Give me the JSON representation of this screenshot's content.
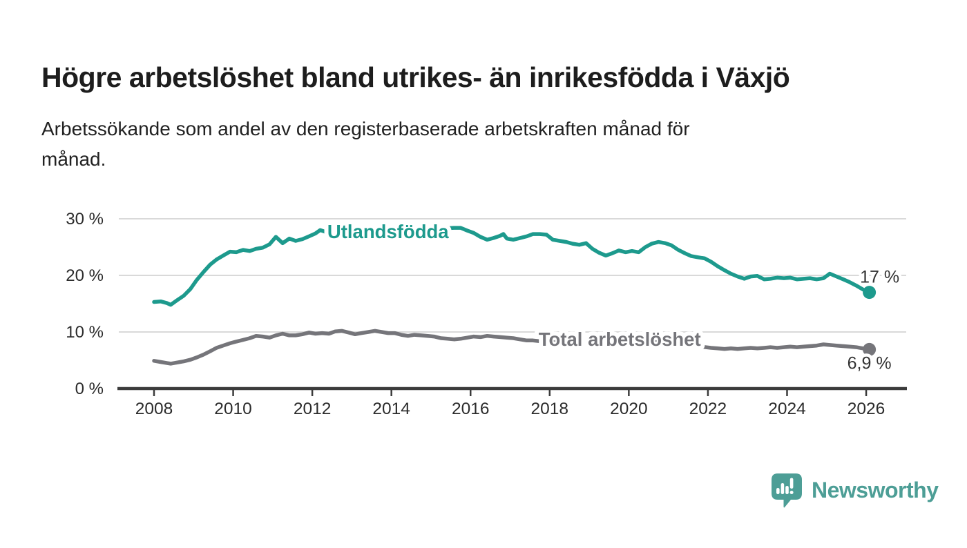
{
  "header": {
    "title": "Högre arbetslöshet bland utrikes- än inrikesfödda i Växjö",
    "subtitle_lines": [
      "Arbetssökande som andel av den registerbaserade arbetskraften månad för",
      "månad."
    ]
  },
  "chart_data": {
    "type": "line",
    "title": "Högre arbetslöshet bland utrikes- än inrikesfödda i Växjö",
    "subtitle": "Arbetssökande som andel av den registerbaserade arbetskraften månad för månad.",
    "xlabel": "",
    "ylabel": "",
    "x_range": [
      2007.1,
      2027.0
    ],
    "ylim": [
      0,
      30
    ],
    "grid": "horizontal",
    "legend_position": "inline",
    "grid_color": "#d9d9d9",
    "axis_color": "#3b3b3b",
    "tick_label_color": "#2b2b2b",
    "x_ticks": [
      2008,
      2010,
      2012,
      2014,
      2016,
      2018,
      2020,
      2022,
      2024,
      2026
    ],
    "y_ticks": [
      {
        "value": 0,
        "label": "0 %"
      },
      {
        "value": 10,
        "label": "10 %"
      },
      {
        "value": 20,
        "label": "20 %"
      },
      {
        "value": 30,
        "label": "30 %"
      }
    ],
    "series": [
      {
        "id": "utlandsfodda",
        "name": "Utlandsfödda",
        "color": "#1d9a8d",
        "inline_label": {
          "text": "Utlandsfödda",
          "x": 2012.38,
          "y": 27.8
        },
        "end_label": "17 %",
        "end_value": 17.0,
        "points": [
          [
            2008.0,
            15.3
          ],
          [
            2008.17,
            15.4
          ],
          [
            2008.33,
            15.1
          ],
          [
            2008.42,
            14.8
          ],
          [
            2008.58,
            15.6
          ],
          [
            2008.75,
            16.4
          ],
          [
            2008.92,
            17.6
          ],
          [
            2009.08,
            19.2
          ],
          [
            2009.25,
            20.6
          ],
          [
            2009.42,
            21.9
          ],
          [
            2009.58,
            22.8
          ],
          [
            2009.75,
            23.5
          ],
          [
            2009.92,
            24.2
          ],
          [
            2010.08,
            24.1
          ],
          [
            2010.25,
            24.5
          ],
          [
            2010.42,
            24.3
          ],
          [
            2010.58,
            24.7
          ],
          [
            2010.75,
            24.9
          ],
          [
            2010.92,
            25.5
          ],
          [
            2011.08,
            26.8
          ],
          [
            2011.25,
            25.7
          ],
          [
            2011.42,
            26.5
          ],
          [
            2011.58,
            26.1
          ],
          [
            2011.75,
            26.4
          ],
          [
            2011.92,
            26.9
          ],
          [
            2012.08,
            27.4
          ],
          [
            2012.2,
            28.0
          ],
          [
            2012.33,
            27.7
          ],
          [
            2012.58,
            27.9
          ],
          [
            2012.83,
            28.1
          ],
          [
            2013.08,
            27.9
          ],
          [
            2013.33,
            28.2
          ],
          [
            2013.58,
            28.0
          ],
          [
            2013.83,
            28.3
          ],
          [
            2014.08,
            28.1
          ],
          [
            2014.33,
            28.3
          ],
          [
            2014.58,
            28.2
          ],
          [
            2014.83,
            28.4
          ],
          [
            2015.08,
            28.2
          ],
          [
            2015.33,
            28.3
          ],
          [
            2015.58,
            28.4
          ],
          [
            2015.75,
            28.4
          ],
          [
            2015.92,
            27.9
          ],
          [
            2016.08,
            27.5
          ],
          [
            2016.25,
            26.8
          ],
          [
            2016.42,
            26.3
          ],
          [
            2016.58,
            26.6
          ],
          [
            2016.75,
            27.0
          ],
          [
            2016.83,
            27.3
          ],
          [
            2016.92,
            26.5
          ],
          [
            2017.08,
            26.3
          ],
          [
            2017.25,
            26.6
          ],
          [
            2017.42,
            26.9
          ],
          [
            2017.58,
            27.3
          ],
          [
            2017.75,
            27.3
          ],
          [
            2017.92,
            27.2
          ],
          [
            2018.08,
            26.3
          ],
          [
            2018.25,
            26.1
          ],
          [
            2018.42,
            25.9
          ],
          [
            2018.58,
            25.6
          ],
          [
            2018.75,
            25.4
          ],
          [
            2018.92,
            25.7
          ],
          [
            2019.08,
            24.7
          ],
          [
            2019.25,
            24.0
          ],
          [
            2019.42,
            23.5
          ],
          [
            2019.58,
            23.9
          ],
          [
            2019.75,
            24.4
          ],
          [
            2019.92,
            24.1
          ],
          [
            2020.08,
            24.3
          ],
          [
            2020.25,
            24.1
          ],
          [
            2020.42,
            25.0
          ],
          [
            2020.58,
            25.6
          ],
          [
            2020.75,
            25.9
          ],
          [
            2020.92,
            25.7
          ],
          [
            2021.08,
            25.3
          ],
          [
            2021.25,
            24.5
          ],
          [
            2021.42,
            23.9
          ],
          [
            2021.58,
            23.4
          ],
          [
            2021.75,
            23.2
          ],
          [
            2021.92,
            23.0
          ],
          [
            2022.08,
            22.4
          ],
          [
            2022.25,
            21.6
          ],
          [
            2022.42,
            20.9
          ],
          [
            2022.58,
            20.3
          ],
          [
            2022.75,
            19.8
          ],
          [
            2022.92,
            19.4
          ],
          [
            2023.08,
            19.8
          ],
          [
            2023.25,
            19.9
          ],
          [
            2023.42,
            19.3
          ],
          [
            2023.58,
            19.4
          ],
          [
            2023.75,
            19.6
          ],
          [
            2023.92,
            19.5
          ],
          [
            2024.08,
            19.6
          ],
          [
            2024.25,
            19.3
          ],
          [
            2024.42,
            19.4
          ],
          [
            2024.58,
            19.5
          ],
          [
            2024.75,
            19.3
          ],
          [
            2024.92,
            19.5
          ],
          [
            2025.0,
            19.9
          ],
          [
            2025.08,
            20.3
          ],
          [
            2025.25,
            19.8
          ],
          [
            2025.42,
            19.3
          ],
          [
            2025.58,
            18.8
          ],
          [
            2025.75,
            18.2
          ],
          [
            2025.92,
            17.5
          ],
          [
            2026.08,
            17.0
          ]
        ]
      },
      {
        "id": "total-arbetsloshet",
        "name": "Total arbetslöshet",
        "color": "#75757a",
        "inline_label": {
          "text": "Total arbetslöshet",
          "x": 2017.72,
          "y": 8.8
        },
        "end_label": "6,9 %",
        "end_value": 6.9,
        "points": [
          [
            2008.0,
            4.9
          ],
          [
            2008.17,
            4.7
          ],
          [
            2008.33,
            4.5
          ],
          [
            2008.42,
            4.4
          ],
          [
            2008.58,
            4.6
          ],
          [
            2008.75,
            4.8
          ],
          [
            2008.92,
            5.1
          ],
          [
            2009.08,
            5.5
          ],
          [
            2009.25,
            6.0
          ],
          [
            2009.42,
            6.6
          ],
          [
            2009.58,
            7.2
          ],
          [
            2009.75,
            7.6
          ],
          [
            2009.92,
            8.0
          ],
          [
            2010.08,
            8.3
          ],
          [
            2010.25,
            8.6
          ],
          [
            2010.42,
            8.9
          ],
          [
            2010.58,
            9.3
          ],
          [
            2010.75,
            9.2
          ],
          [
            2010.92,
            9.0
          ],
          [
            2011.08,
            9.4
          ],
          [
            2011.25,
            9.7
          ],
          [
            2011.42,
            9.4
          ],
          [
            2011.58,
            9.4
          ],
          [
            2011.75,
            9.6
          ],
          [
            2011.92,
            9.9
          ],
          [
            2012.08,
            9.7
          ],
          [
            2012.25,
            9.8
          ],
          [
            2012.42,
            9.7
          ],
          [
            2012.58,
            10.1
          ],
          [
            2012.75,
            10.2
          ],
          [
            2012.92,
            9.9
          ],
          [
            2013.08,
            9.6
          ],
          [
            2013.25,
            9.8
          ],
          [
            2013.42,
            10.0
          ],
          [
            2013.58,
            10.2
          ],
          [
            2013.75,
            10.0
          ],
          [
            2013.92,
            9.8
          ],
          [
            2014.08,
            9.8
          ],
          [
            2014.25,
            9.5
          ],
          [
            2014.42,
            9.3
          ],
          [
            2014.58,
            9.5
          ],
          [
            2014.75,
            9.4
          ],
          [
            2014.92,
            9.3
          ],
          [
            2015.08,
            9.2
          ],
          [
            2015.25,
            8.9
          ],
          [
            2015.42,
            8.8
          ],
          [
            2015.58,
            8.7
          ],
          [
            2015.75,
            8.8
          ],
          [
            2015.92,
            9.0
          ],
          [
            2016.08,
            9.2
          ],
          [
            2016.25,
            9.1
          ],
          [
            2016.42,
            9.3
          ],
          [
            2016.58,
            9.2
          ],
          [
            2016.75,
            9.1
          ],
          [
            2016.92,
            9.0
          ],
          [
            2017.08,
            8.9
          ],
          [
            2017.25,
            8.7
          ],
          [
            2017.42,
            8.5
          ],
          [
            2017.58,
            8.5
          ],
          [
            2017.83,
            8.3
          ],
          [
            2018.08,
            8.2
          ],
          [
            2018.33,
            8.0
          ],
          [
            2018.58,
            7.9
          ],
          [
            2018.83,
            7.8
          ],
          [
            2019.08,
            7.7
          ],
          [
            2019.33,
            7.6
          ],
          [
            2019.58,
            7.6
          ],
          [
            2019.83,
            7.7
          ],
          [
            2020.08,
            7.9
          ],
          [
            2020.33,
            8.1
          ],
          [
            2020.58,
            8.2
          ],
          [
            2020.83,
            8.1
          ],
          [
            2021.08,
            7.9
          ],
          [
            2021.33,
            7.7
          ],
          [
            2021.58,
            7.5
          ],
          [
            2021.83,
            7.4
          ],
          [
            2022.08,
            7.2
          ],
          [
            2022.25,
            7.1
          ],
          [
            2022.42,
            7.0
          ],
          [
            2022.58,
            7.1
          ],
          [
            2022.75,
            7.0
          ],
          [
            2022.92,
            7.1
          ],
          [
            2023.08,
            7.2
          ],
          [
            2023.25,
            7.1
          ],
          [
            2023.42,
            7.2
          ],
          [
            2023.58,
            7.3
          ],
          [
            2023.75,
            7.2
          ],
          [
            2023.92,
            7.3
          ],
          [
            2024.08,
            7.4
          ],
          [
            2024.25,
            7.3
          ],
          [
            2024.42,
            7.4
          ],
          [
            2024.58,
            7.5
          ],
          [
            2024.75,
            7.6
          ],
          [
            2024.92,
            7.8
          ],
          [
            2025.08,
            7.7
          ],
          [
            2025.25,
            7.6
          ],
          [
            2025.42,
            7.5
          ],
          [
            2025.58,
            7.4
          ],
          [
            2025.75,
            7.3
          ],
          [
            2025.92,
            7.1
          ],
          [
            2026.08,
            6.9
          ]
        ]
      }
    ]
  },
  "footer": {
    "logo_text": "Newsworthy",
    "logo_color": "#4d9e96"
  }
}
